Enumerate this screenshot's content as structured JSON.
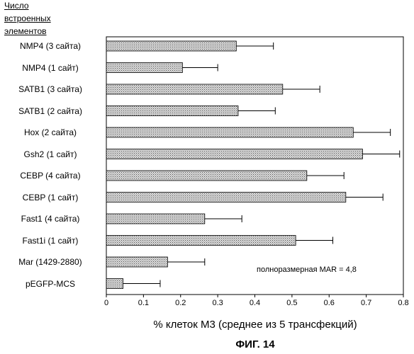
{
  "chart_data": {
    "type": "bar",
    "orientation": "horizontal",
    "header": [
      "Число",
      "встроенных",
      "элементов"
    ],
    "categories": [
      "NMP4 (3 сайта)",
      "NMP4 (1 сайт)",
      "SATB1 (3 сайта)",
      "SATB1 (2 сайта)",
      "Hox (2 сайта)",
      "Gsh2 (1 сайт)",
      "CEBP (4 сайта)",
      "CEBP (1 сайт)",
      "Fast1 (4 сайта)",
      "Fast1i (1 сайт)",
      "Mar (1429-2880)",
      "pEGFP-MCS"
    ],
    "values": [
      0.35,
      0.205,
      0.475,
      0.355,
      0.665,
      0.69,
      0.54,
      0.645,
      0.265,
      0.51,
      0.165,
      0.045
    ],
    "error": [
      0.1,
      0.095,
      0.1,
      0.1,
      0.1,
      0.1,
      0.1,
      0.1,
      0.1,
      0.1,
      0.1,
      0.1
    ],
    "xlim": [
      0,
      0.8
    ],
    "xticks": [
      "0",
      "0.1",
      "0.2",
      "0.3",
      "0.4",
      "0.5",
      "0.6",
      "0.7",
      "0.8"
    ],
    "xlabel": "% клеток М3 (среднее из 5 трансфекций)",
    "annotation": "полноразмерная MAR = 4,8",
    "caption": "ФИГ. 14",
    "grid": false,
    "bar_color": "#b8b8b8"
  }
}
